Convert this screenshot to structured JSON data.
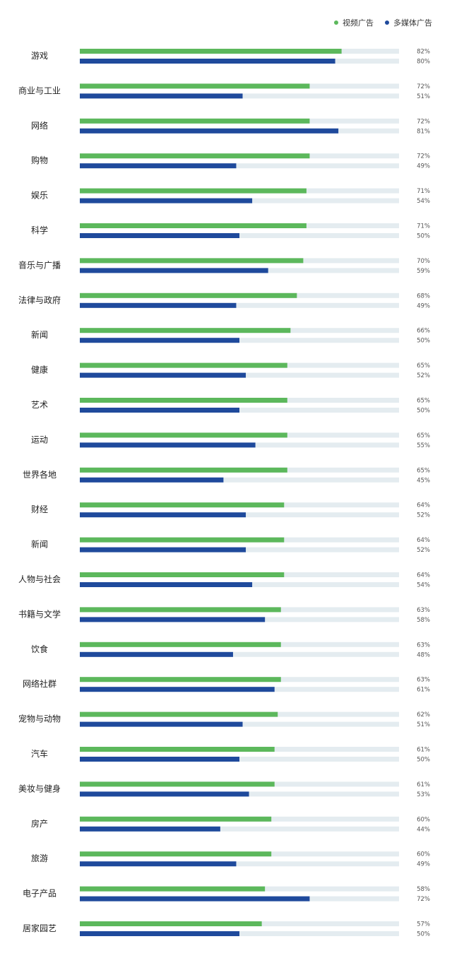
{
  "chart_data": {
    "type": "bar",
    "orientation": "horizontal",
    "xlim": [
      0,
      100
    ],
    "value_suffix": "%",
    "legend_position": "top-right",
    "colors": {
      "video": "#5cb85c",
      "multimedia": "#1f4a9c",
      "track": "#e4ecf0"
    },
    "categories": [
      "游戏",
      "商业与工业",
      "网络",
      "购物",
      "娱乐",
      "科学",
      "音乐与广播",
      "法律与政府",
      "新闻",
      "健康",
      "艺术",
      "运动",
      "世界各地",
      "财经",
      "新闻",
      "人物与社会",
      "书籍与文学",
      "饮食",
      "网络社群",
      "宠物与动物",
      "汽车",
      "美妆与健身",
      "房产",
      "旅游",
      "电子产品",
      "居家园艺"
    ],
    "series": [
      {
        "name": "视频广告",
        "values": [
          82,
          72,
          72,
          72,
          71,
          71,
          70,
          68,
          66,
          65,
          65,
          65,
          65,
          64,
          64,
          64,
          63,
          63,
          63,
          62,
          61,
          61,
          60,
          60,
          58,
          57
        ]
      },
      {
        "name": "多媒体广告",
        "values": [
          80,
          51,
          81,
          49,
          54,
          50,
          59,
          49,
          50,
          52,
          50,
          55,
          45,
          52,
          52,
          54,
          58,
          48,
          61,
          51,
          50,
          53,
          44,
          49,
          72,
          50
        ]
      }
    ]
  }
}
